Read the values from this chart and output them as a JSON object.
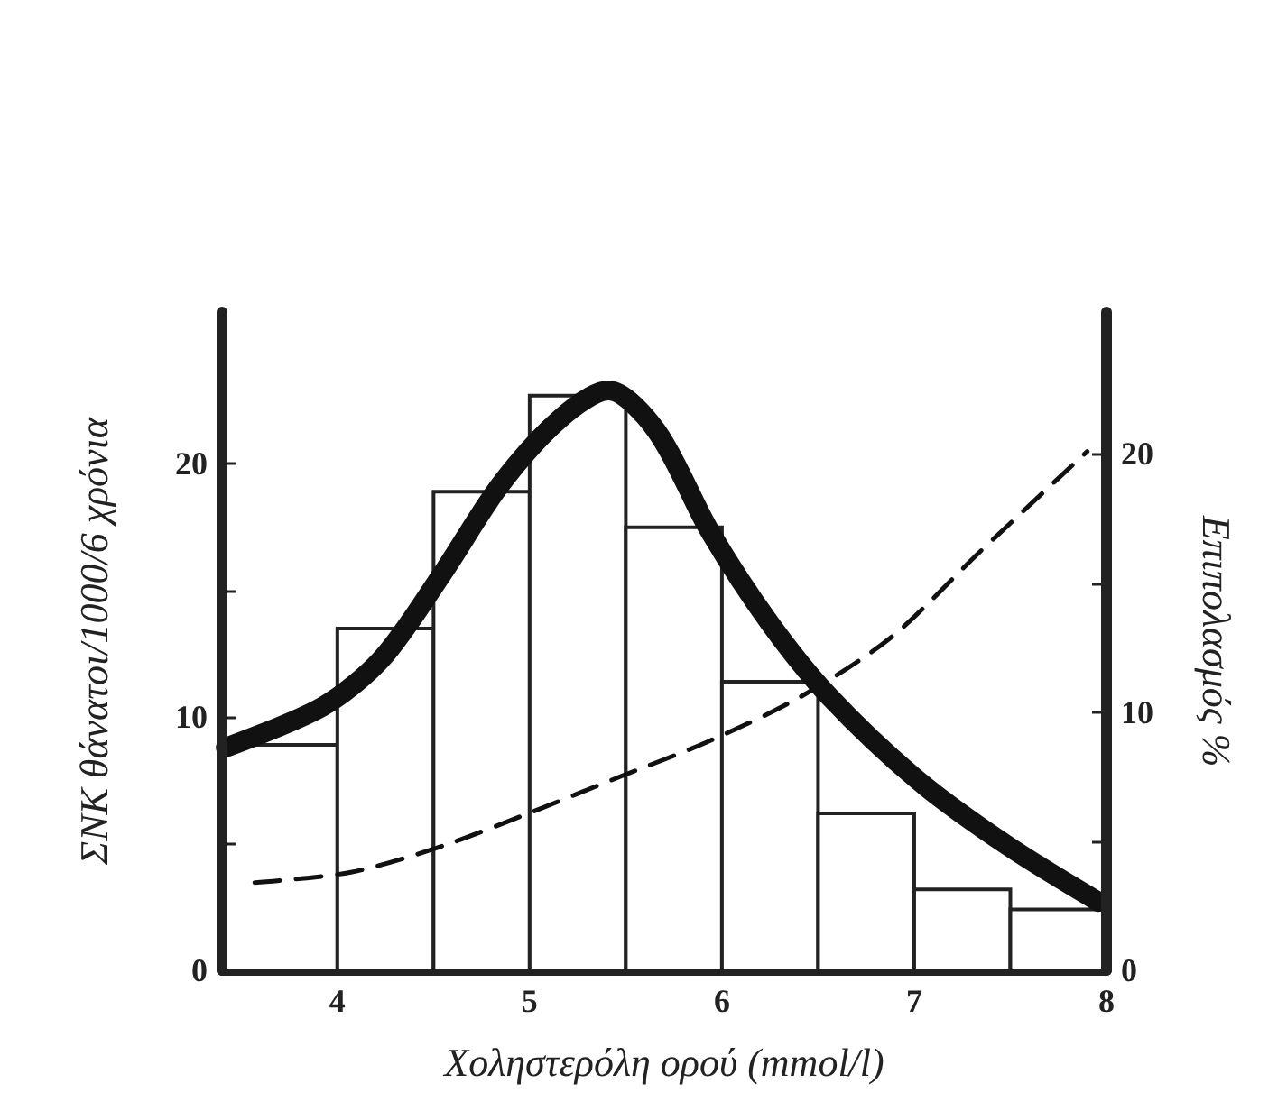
{
  "chart_data": {
    "type": "histogram",
    "xlabel": "Χοληστερόλη ορού (mmol/l)",
    "ylabel": "ΣΝΚ θάνατοι/1000/6 χρόνια",
    "y2label": "Επιπολασμός %",
    "xlim": [
      3.4,
      8
    ],
    "xticks": [
      4,
      5,
      6,
      7,
      8
    ],
    "ylim": [
      0,
      26
    ],
    "yticks": [
      0,
      {
        "value": 5,
        "label": null
      },
      10,
      {
        "value": 15,
        "label": null
      },
      20
    ],
    "y2lim": [
      0,
      25.5
    ],
    "y2ticks": [
      0,
      {
        "value": 5,
        "label": null
      },
      10,
      {
        "value": 15,
        "label": null
      },
      20
    ],
    "grid": false,
    "series": [
      {
        "color": "#ffffff",
        "bins": [
          3.4,
          4,
          4.5,
          5,
          5.5,
          6,
          6.5,
          7,
          7.5,
          8
        ],
        "values": [
          8.9,
          13.5,
          18.9,
          22.7,
          17.5,
          11.4,
          6.2,
          3.2,
          2.4
        ]
      },
      {
        "type": "line",
        "color": "#111111",
        "line_style": "solid",
        "x": [
          3.42,
          3.92,
          4.23,
          4.54,
          4.85,
          5.16,
          5.41,
          5.66,
          5.94,
          6.25,
          6.56,
          7.02,
          7.49,
          7.96
        ],
        "values": [
          8.8,
          10.4,
          12.3,
          15.6,
          19.2,
          21.8,
          22.9,
          21.3,
          17.3,
          13.7,
          10.8,
          7.5,
          4.9,
          2.7
        ]
      },
      {
        "type": "line",
        "axis": "y2",
        "color": "#111111",
        "line_style": "dashed",
        "x": [
          3.57,
          4.07,
          4.54,
          5.0,
          5.47,
          5.94,
          6.41,
          6.88,
          7.34,
          7.9
        ],
        "values": [
          3.4,
          3.8,
          4.8,
          6.1,
          7.5,
          8.9,
          10.6,
          12.9,
          16.2,
          20.1
        ]
      }
    ]
  }
}
